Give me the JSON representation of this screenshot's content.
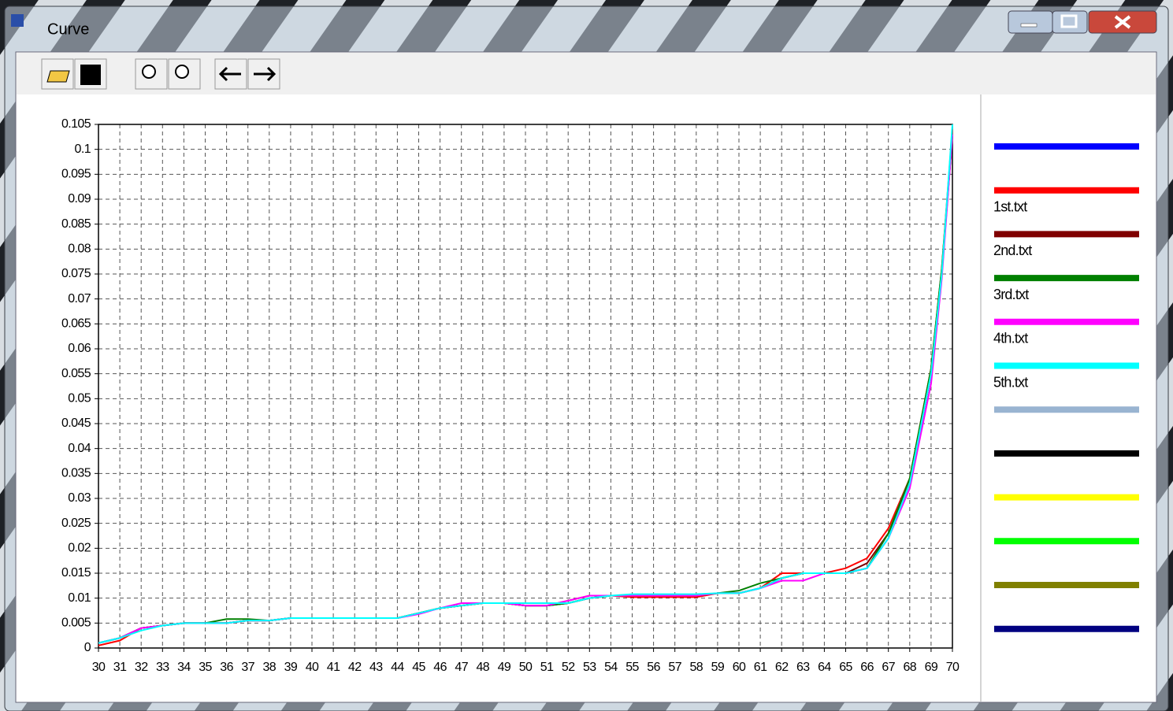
{
  "window": {
    "title": "Curve"
  },
  "chart_data": {
    "type": "line",
    "x": [
      30,
      31,
      32,
      33,
      34,
      35,
      36,
      37,
      38,
      39,
      40,
      41,
      42,
      43,
      44,
      45,
      46,
      47,
      48,
      49,
      50,
      51,
      52,
      53,
      54,
      55,
      56,
      57,
      58,
      59,
      60,
      61,
      62,
      63,
      64,
      65,
      66,
      67,
      68,
      69,
      69.5,
      70
    ],
    "series": [
      {
        "name": null,
        "color": "#0000ff",
        "values": [
          0.001,
          0.002,
          0.004,
          0.0045,
          0.005,
          0.005,
          0.005,
          0.0055,
          0.0055,
          0.006,
          0.006,
          0.006,
          0.006,
          0.006,
          0.006,
          0.007,
          0.008,
          0.0085,
          0.009,
          0.009,
          0.0085,
          0.0085,
          0.009,
          0.01,
          0.0105,
          0.0105,
          0.0105,
          0.0105,
          0.0105,
          0.011,
          0.011,
          0.012,
          0.014,
          0.015,
          0.015,
          0.015,
          0.016,
          0.022,
          0.033,
          0.055,
          0.075,
          0.103
        ]
      },
      {
        "name": "1st.txt",
        "color": "#ff0000",
        "values": [
          0.0005,
          0.0015,
          0.004,
          0.0045,
          0.005,
          0.005,
          0.005,
          0.0055,
          0.0055,
          0.006,
          0.006,
          0.006,
          0.006,
          0.006,
          0.006,
          0.007,
          0.008,
          0.0085,
          0.009,
          0.009,
          0.0085,
          0.0085,
          0.0095,
          0.0105,
          0.0105,
          0.0102,
          0.0102,
          0.0102,
          0.0102,
          0.011,
          0.011,
          0.012,
          0.015,
          0.015,
          0.015,
          0.016,
          0.018,
          0.024,
          0.034,
          0.056,
          0.076,
          0.104
        ]
      },
      {
        "name": "2nd.txt",
        "color": "#800000",
        "values": [
          0.001,
          0.002,
          0.004,
          0.0045,
          0.005,
          0.005,
          0.005,
          0.0055,
          0.0055,
          0.006,
          0.006,
          0.006,
          0.006,
          0.006,
          0.006,
          0.007,
          0.008,
          0.0085,
          0.009,
          0.009,
          0.0085,
          0.0085,
          0.009,
          0.01,
          0.0105,
          0.0105,
          0.0105,
          0.0105,
          0.0105,
          0.011,
          0.011,
          0.012,
          0.014,
          0.015,
          0.015,
          0.015,
          0.017,
          0.023,
          0.033,
          0.055,
          0.075,
          0.103
        ]
      },
      {
        "name": "3rd.txt",
        "color": "#008000",
        "values": [
          0.001,
          0.002,
          0.004,
          0.0045,
          0.005,
          0.005,
          0.0058,
          0.0058,
          0.0055,
          0.006,
          0.006,
          0.006,
          0.006,
          0.006,
          0.006,
          0.007,
          0.008,
          0.0085,
          0.009,
          0.009,
          0.0085,
          0.0085,
          0.009,
          0.01,
          0.0105,
          0.0105,
          0.0105,
          0.0105,
          0.0105,
          0.011,
          0.0115,
          0.013,
          0.014,
          0.015,
          0.015,
          0.015,
          0.016,
          0.023,
          0.034,
          0.056,
          0.076,
          0.103
        ]
      },
      {
        "name": "4th.txt",
        "color": "#ff00ff",
        "values": [
          0.001,
          0.002,
          0.004,
          0.0045,
          0.005,
          0.005,
          0.005,
          0.0055,
          0.0055,
          0.006,
          0.006,
          0.006,
          0.006,
          0.006,
          0.006,
          0.0068,
          0.008,
          0.009,
          0.009,
          0.009,
          0.0085,
          0.0085,
          0.0095,
          0.0105,
          0.0105,
          0.0105,
          0.0105,
          0.0105,
          0.0105,
          0.011,
          0.011,
          0.012,
          0.0135,
          0.0135,
          0.015,
          0.015,
          0.016,
          0.022,
          0.032,
          0.053,
          0.074,
          0.103
        ]
      },
      {
        "name": "5th.txt",
        "color": "#00ffff",
        "values": [
          0.001,
          0.002,
          0.0035,
          0.0045,
          0.005,
          0.005,
          0.005,
          0.0055,
          0.0055,
          0.006,
          0.006,
          0.006,
          0.006,
          0.006,
          0.006,
          0.007,
          0.008,
          0.0085,
          0.009,
          0.009,
          0.009,
          0.009,
          0.009,
          0.01,
          0.0105,
          0.0108,
          0.0108,
          0.0108,
          0.0108,
          0.011,
          0.011,
          0.012,
          0.014,
          0.015,
          0.015,
          0.015,
          0.016,
          0.022,
          0.033,
          0.055,
          0.075,
          0.105
        ]
      }
    ],
    "legend_extra_colors": [
      "#99b4d1",
      "#000000",
      "#ffff00",
      "#00ff00",
      "#808000",
      "#000080"
    ],
    "xlim": [
      30,
      70
    ],
    "xticks": [
      30,
      31,
      32,
      33,
      34,
      35,
      36,
      37,
      38,
      39,
      40,
      41,
      42,
      43,
      44,
      45,
      46,
      47,
      48,
      49,
      50,
      51,
      52,
      53,
      54,
      55,
      56,
      57,
      58,
      59,
      60,
      61,
      62,
      63,
      64,
      65,
      66,
      67,
      68,
      69,
      70
    ],
    "ylim": [
      0,
      0.105
    ],
    "yticks": [
      0,
      0.005,
      0.01,
      0.015,
      0.02,
      0.025,
      0.03,
      0.035,
      0.04,
      0.045,
      0.05,
      0.055,
      0.06,
      0.065,
      0.07,
      0.075,
      0.08,
      0.085,
      0.09,
      0.095,
      0.1,
      0.105
    ],
    "grid": true,
    "legend": "right"
  }
}
